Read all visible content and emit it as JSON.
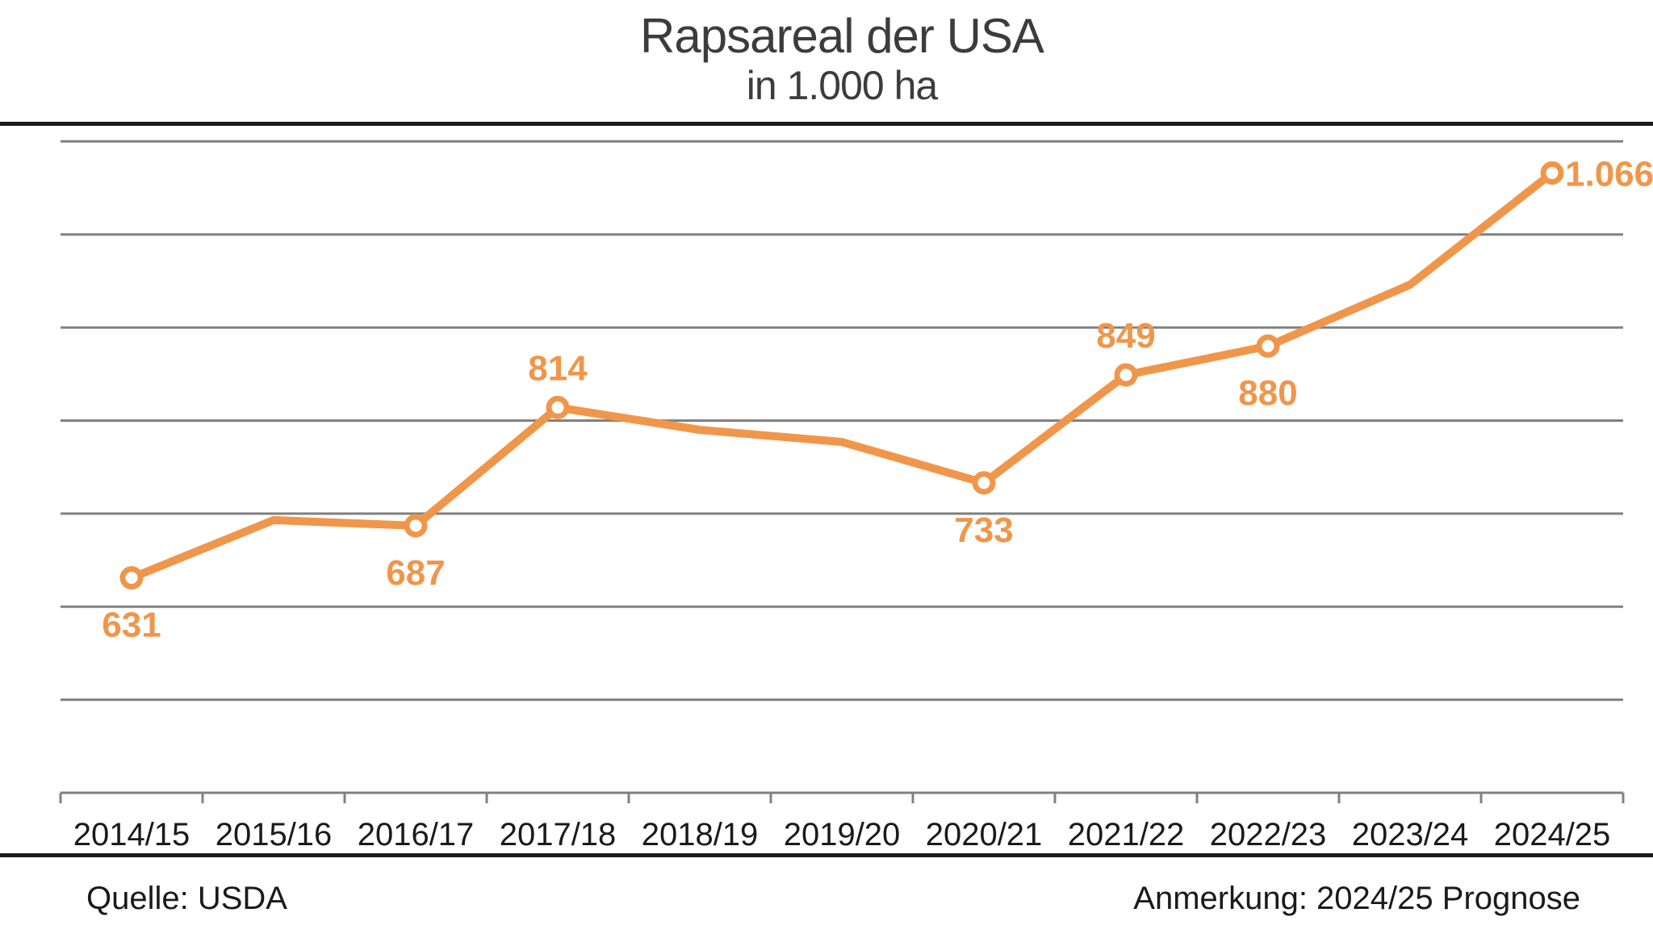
{
  "header": {
    "title": "Rapsareal der USA",
    "subtitle": "in 1.000 ha"
  },
  "chart_data": {
    "type": "line",
    "title": "Rapsareal der USA",
    "subtitle": "in 1.000 ha",
    "unit": "1.000 ha",
    "xlabel": "",
    "ylabel": "",
    "grid_on": true,
    "legend": "none",
    "ylim": [
      400,
      1105
    ],
    "gridlines": [
      500,
      600,
      700,
      800,
      900,
      1000,
      1100
    ],
    "categories": [
      "2014/15",
      "2015/16",
      "2016/17",
      "2017/18",
      "2018/19",
      "2019/20",
      "2020/21",
      "2021/22",
      "2022/23",
      "2023/24",
      "2024/25"
    ],
    "values": [
      631,
      693,
      687,
      814,
      790,
      777,
      733,
      849,
      880,
      946,
      1066
    ],
    "points": [
      {
        "category": "2014/15",
        "value": 631,
        "label": "631",
        "marker": true,
        "label_position": "below"
      },
      {
        "category": "2015/16",
        "value": 693,
        "label": "",
        "marker": false,
        "label_position": ""
      },
      {
        "category": "2016/17",
        "value": 687,
        "label": "687",
        "marker": true,
        "label_position": "below"
      },
      {
        "category": "2017/18",
        "value": 814,
        "label": "814",
        "marker": true,
        "label_position": "above"
      },
      {
        "category": "2018/19",
        "value": 790,
        "label": "",
        "marker": false,
        "label_position": ""
      },
      {
        "category": "2019/20",
        "value": 777,
        "label": "",
        "marker": false,
        "label_position": ""
      },
      {
        "category": "2020/21",
        "value": 733,
        "label": "733",
        "marker": true,
        "label_position": "below"
      },
      {
        "category": "2021/22",
        "value": 849,
        "label": "849",
        "marker": true,
        "label_position": "above"
      },
      {
        "category": "2022/23",
        "value": 880,
        "label": "880",
        "marker": true,
        "label_position": "below"
      },
      {
        "category": "2023/24",
        "value": 946,
        "label": "",
        "marker": false,
        "label_position": ""
      },
      {
        "category": "2024/25",
        "value": 1066,
        "label": "1.066",
        "marker": true,
        "label_position": "right"
      }
    ],
    "colors": {
      "line": "#F0964B",
      "marker_fill": "#FFFFFF",
      "grid": "#808080",
      "axis": "#808080",
      "tick_text": "#1A1A1A",
      "title_text": "#3C3C3C"
    }
  },
  "footer": {
    "source": "Quelle: USDA",
    "annotation": "Anmerkung: 2024/25 Prognose"
  }
}
